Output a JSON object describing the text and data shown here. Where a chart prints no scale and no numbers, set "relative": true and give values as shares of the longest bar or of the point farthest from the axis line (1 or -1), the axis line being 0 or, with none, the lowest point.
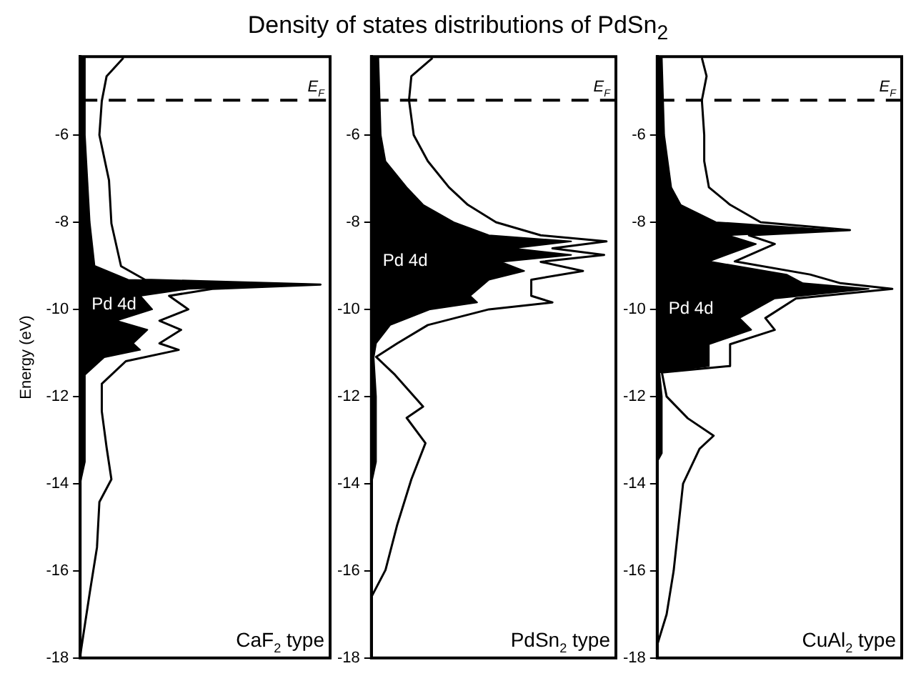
{
  "chart_data": [
    {
      "type": "line",
      "orientation": "horizontal",
      "relative": true,
      "title": "Density of states distributions of PdSn$_{2}$",
      "ylabel": "Energy (eV)",
      "ylim": [
        -18,
        -4.2
      ],
      "yticks": [
        -18,
        -16,
        -14,
        -12,
        -10,
        -8,
        -6
      ],
      "tick_labels": "y",
      "ref_lines": [
        {
          "axis": "y",
          "value": -5.2,
          "label": "E$_{F}$",
          "line_style": "dashed",
          "color": "#000000"
        }
      ],
      "annotations": [
        "CaF$_{2}$ type"
      ],
      "series": [
        {
          "type": "line",
          "color": "#000000",
          "x": [
            -4.23,
            -4.65,
            -5.22,
            -6,
            -7.04,
            -8.03,
            -9.01,
            -9.32,
            -9.43,
            -9.53,
            -9.69,
            -10,
            -10.26,
            -10.47,
            -10.78,
            -10.93,
            -11.19,
            -11.71,
            -12.34,
            -13.17,
            -13.9,
            -14.42,
            -15.46,
            -16.5,
            -17.95,
            -18
          ],
          "values": [
            0.18,
            0.11,
            0.09,
            0.08,
            0.12,
            0.13,
            0.17,
            0.27,
            1,
            0.55,
            0.37,
            0.45,
            0.33,
            0.42,
            0.33,
            0.41,
            0.19,
            0.09,
            0.09,
            0.11,
            0.13,
            0.08,
            0.07,
            0.04,
            0,
            0
          ]
        },
        {
          "type": "area",
          "name": "Pd 4d",
          "color": "#000000",
          "x": [
            -4.23,
            -6,
            -8,
            -9,
            -9.32,
            -9.43,
            -9.53,
            -9.69,
            -10,
            -10.26,
            -10.47,
            -10.78,
            -10.93,
            -11.1,
            -11.5,
            -12,
            -13.5,
            -14,
            -18
          ],
          "values": [
            0.02,
            0.02,
            0.04,
            0.06,
            0.2,
            0.98,
            0.45,
            0.25,
            0.3,
            0.15,
            0.28,
            0.22,
            0.25,
            0.1,
            0.02,
            0.02,
            0.02,
            0,
            0
          ]
        }
      ]
    },
    {
      "type": "line",
      "orientation": "horizontal",
      "relative": true,
      "ylim": [
        -18,
        -4.2
      ],
      "yticks": [
        -18,
        -16,
        -14,
        -12,
        -10,
        -8,
        -6
      ],
      "tick_labels": "y",
      "ref_lines": [
        {
          "axis": "y",
          "value": -5.2,
          "label": "E$_{F}$",
          "line_style": "dashed",
          "color": "#000000"
        }
      ],
      "annotations": [
        "PdSn$_{2}$ type"
      ],
      "series": [
        {
          "type": "line",
          "color": "#000000",
          "x": [
            -4.23,
            -4.65,
            -5.2,
            -6,
            -6.6,
            -7.2,
            -7.6,
            -8,
            -8.3,
            -8.44,
            -8.6,
            -8.75,
            -8.91,
            -9.12,
            -9.32,
            -9.69,
            -9.84,
            -10,
            -10.36,
            -10.78,
            -11.09,
            -11.5,
            -12.23,
            -12.49,
            -13.07,
            -13.9,
            -14.94,
            -15.98,
            -16.6,
            -18
          ],
          "values": [
            0.26,
            0.17,
            0.16,
            0.18,
            0.24,
            0.33,
            0.41,
            0.53,
            0.72,
            1,
            0.77,
            0.99,
            0.72,
            0.9,
            0.68,
            0.68,
            0.77,
            0.5,
            0.24,
            0.11,
            0.02,
            0.1,
            0.22,
            0.15,
            0.23,
            0.17,
            0.11,
            0.06,
            0,
            0
          ]
        },
        {
          "type": "area",
          "name": "Pd 4d",
          "color": "#000000",
          "x": [
            -4.23,
            -6,
            -6.6,
            -7.2,
            -7.6,
            -8,
            -8.3,
            -8.44,
            -8.6,
            -8.75,
            -8.91,
            -9.12,
            -9.32,
            -9.69,
            -9.84,
            -10,
            -10.36,
            -10.78,
            -11.1,
            -12,
            -13.5,
            -14,
            -18
          ],
          "values": [
            0.03,
            0.04,
            0.06,
            0.15,
            0.22,
            0.35,
            0.5,
            0.85,
            0.6,
            0.85,
            0.55,
            0.65,
            0.5,
            0.42,
            0.45,
            0.25,
            0.08,
            0.02,
            0.01,
            0.02,
            0.02,
            0,
            0
          ]
        }
      ]
    },
    {
      "type": "line",
      "orientation": "horizontal",
      "relative": true,
      "ylim": [
        -18,
        -4.2
      ],
      "yticks": [
        -18,
        -16,
        -14,
        -12,
        -10,
        -8,
        -6
      ],
      "tick_labels": "y",
      "ref_lines": [
        {
          "axis": "y",
          "value": -5.2,
          "label": "E$_{F}$",
          "line_style": "dashed",
          "color": "#000000"
        }
      ],
      "annotations": [
        "CuAl$_{2}$ type"
      ],
      "series": [
        {
          "type": "line",
          "color": "#000000",
          "x": [
            -4.23,
            -4.65,
            -5.2,
            -6,
            -6.6,
            -7.2,
            -7.6,
            -8,
            -8.18,
            -8.3,
            -8.5,
            -8.9,
            -9.2,
            -9.4,
            -9.53,
            -9.75,
            -10.2,
            -10.47,
            -10.8,
            -11.3,
            -11.45,
            -12,
            -12.5,
            -12.9,
            -13.2,
            -14,
            -15,
            -16,
            -17,
            -17.7,
            -18
          ],
          "values": [
            0.19,
            0.21,
            0.19,
            0.2,
            0.2,
            0.22,
            0.31,
            0.44,
            0.82,
            0.39,
            0.5,
            0.33,
            0.65,
            0.78,
            1,
            0.59,
            0.46,
            0.5,
            0.31,
            0.31,
            0.02,
            0.04,
            0.13,
            0.24,
            0.18,
            0.11,
            0.09,
            0.07,
            0.04,
            0,
            0
          ]
        },
        {
          "type": "area",
          "name": "Pd 4d",
          "color": "#000000",
          "x": [
            -4.23,
            -6,
            -7.2,
            -7.6,
            -8,
            -8.18,
            -8.3,
            -8.5,
            -8.9,
            -9.2,
            -9.4,
            -9.53,
            -9.75,
            -10.2,
            -10.47,
            -10.8,
            -11.3,
            -11.45,
            -12,
            -13.3,
            -13.5,
            -18
          ],
          "values": [
            0.02,
            0.03,
            0.06,
            0.1,
            0.25,
            0.75,
            0.3,
            0.42,
            0.22,
            0.55,
            0.62,
            0.9,
            0.5,
            0.35,
            0.4,
            0.22,
            0.22,
            0.01,
            0.02,
            0.02,
            0,
            0
          ]
        }
      ]
    }
  ]
}
